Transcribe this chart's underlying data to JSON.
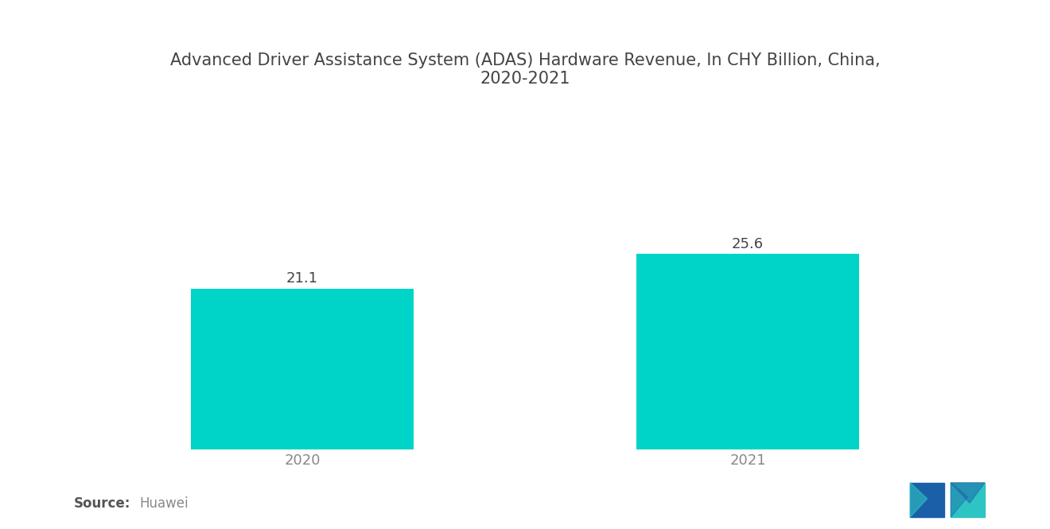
{
  "title": "Advanced Driver Assistance System (ADAS) Hardware Revenue, In CHY Billion, China,\n2020-2021",
  "categories": [
    "2020",
    "2021"
  ],
  "values": [
    21.1,
    25.6
  ],
  "bar_color": "#00D4C8",
  "bar_width": 0.5,
  "value_labels": [
    "21.1",
    "25.6"
  ],
  "source_label": "Source:",
  "source_value": "Huawei",
  "background_color": "#FFFFFF",
  "title_fontsize": 15,
  "label_fontsize": 13,
  "tick_fontsize": 13,
  "source_fontsize": 12,
  "ylim": [
    0,
    45
  ],
  "title_color": "#444444",
  "tick_color": "#888888",
  "value_color": "#444444",
  "logo_colors": {
    "dark_blue": "#1B5FA8",
    "teal": "#2EC4C4",
    "light_teal": "#5BD4D4"
  }
}
